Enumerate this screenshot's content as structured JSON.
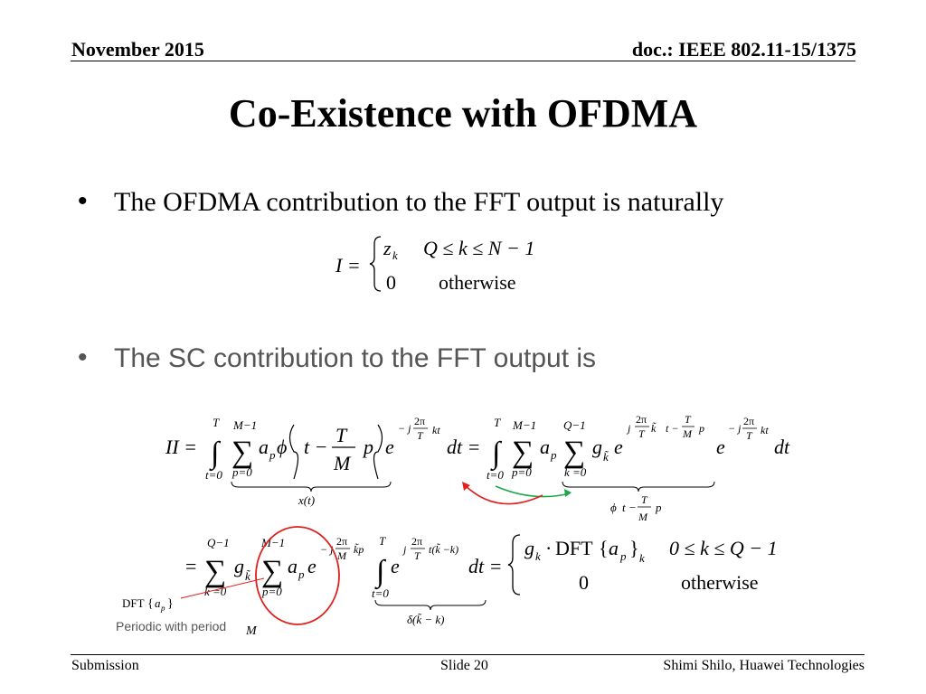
{
  "header": {
    "date": "November 2015",
    "doc": "doc.: IEEE 802.11-15/1375"
  },
  "title": "Co-Existence with OFDMA",
  "bullets": [
    {
      "marker": "•",
      "text": "The OFDMA contribution to the FFT output is naturally"
    },
    {
      "marker": "•",
      "text": "The SC contribution to the FFT output is"
    }
  ],
  "eq1": {
    "lhs": "I =",
    "case1_value": "z",
    "case1_sub": "k",
    "case1_cond": "Q ≤ k ≤ N − 1",
    "case2_value": "0",
    "case2_cond": "otherwise"
  },
  "eq2": {
    "lhs": "II =",
    "xt_label": "x(t)",
    "phi_label": "ϕ(t − ",
    "phi_label_end": " p)",
    "T": "T",
    "M": "M",
    "dt_eq": "dt =",
    "dt": "dt"
  },
  "eq3": {
    "case1_cond": "0 ≤ k ≤ Q − 1",
    "case2_value": "0",
    "case2_cond": "otherwise",
    "dft": "DFT",
    "delta_label": "δ(k̃ − k)",
    "dt_eq": "dt ="
  },
  "annotation": {
    "dft_label": "DFT",
    "note": "Periodic with period",
    "note_var": "M"
  },
  "footer": {
    "left": "Submission",
    "center": "Slide 20",
    "right": "Shimi Shilo, Huawei Technologies"
  },
  "colors": {
    "circle": "#e0201e",
    "arrow_red": "#e0201e",
    "arrow_green": "#1ca84a",
    "bullet2": "#555555"
  }
}
